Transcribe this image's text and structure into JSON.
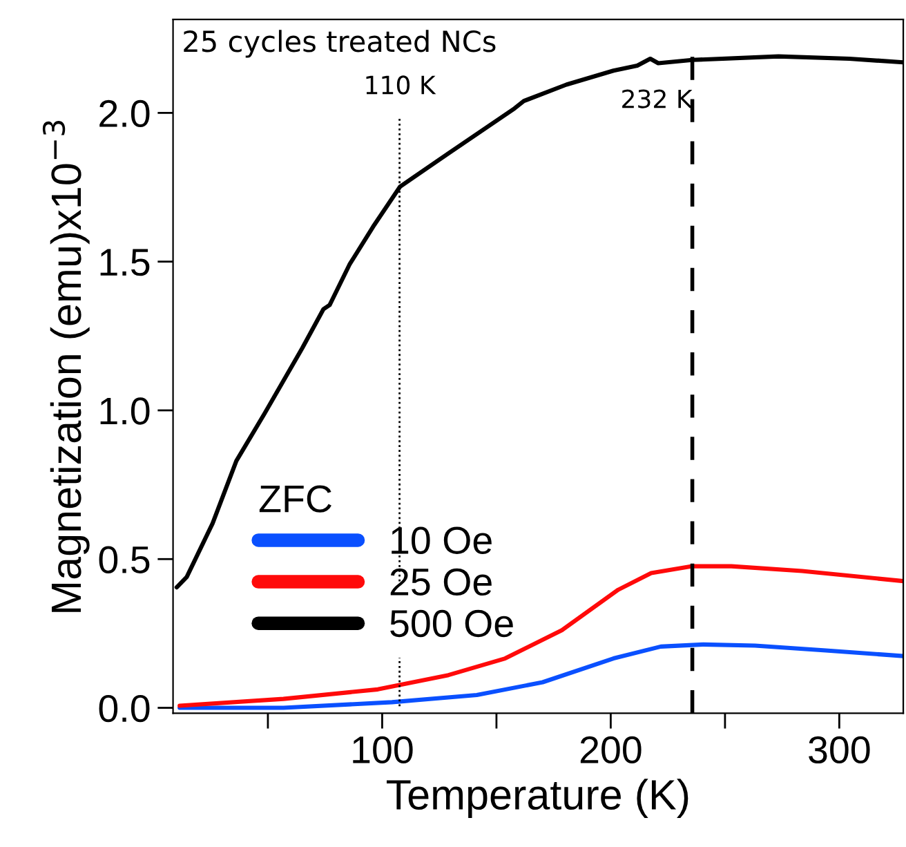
{
  "chart_data": {
    "type": "line",
    "title": "25 cycles treated NCs",
    "xlabel": "Temperature (K)",
    "ylabel": "Magnetization (emu)x10$^{−3}$",
    "legend_title": "ZFC",
    "xlim": [
      8.5,
      328
    ],
    "xticks": [
      {
        "value": 50,
        "label": null
      },
      100,
      {
        "value": 150,
        "label": null
      },
      200,
      {
        "value": 250,
        "label": null
      },
      300
    ],
    "ylim": [
      -0.018,
      2.314
    ],
    "yticks": [
      {
        "value": 0,
        "label": "0.0"
      },
      {
        "value": 0.5,
        "label": "0.5"
      },
      {
        "value": 1,
        "label": "1.0"
      },
      {
        "value": 1.5,
        "label": "1.5"
      },
      {
        "value": 2,
        "label": "2.0"
      }
    ],
    "grid": false,
    "legend": "bottom left",
    "marker": "none",
    "line_style": "solid",
    "series": [
      {
        "name": "10 Oe",
        "color": "#0a50ff",
        "x": [
          11.4,
          56.8,
          104.3,
          141.4,
          170.2,
          201.2,
          221.9,
          240.4,
          263.1,
          294.1,
          328
        ],
        "values": [
          0.0,
          0.0,
          0.019,
          0.043,
          0.086,
          0.166,
          0.206,
          0.213,
          0.209,
          0.193,
          0.174
        ]
      },
      {
        "name": "25 Oe",
        "color": "#ff0a0a",
        "x": [
          11.4,
          56.8,
          98.1,
          129,
          153.8,
          178.6,
          203.3,
          217.7,
          235.7,
          252.8,
          283.7,
          328
        ],
        "values": [
          0.007,
          0.03,
          0.062,
          0.11,
          0.166,
          0.261,
          0.397,
          0.453,
          0.476,
          0.476,
          0.46,
          0.426
        ]
      },
      {
        "name": "500 Oe",
        "color": "#000000",
        "x": [
          10.1,
          14.5,
          25.8,
          36.2,
          48.6,
          65.1,
          74.3,
          77,
          85.7,
          96,
          107.8,
          129,
          157.9,
          162,
          180.6,
          201.2,
          211.6,
          217.3,
          220.8,
          235.7,
          273.4,
          304.4,
          328
        ],
        "values": [
          0.405,
          0.44,
          0.62,
          0.83,
          0.99,
          1.21,
          1.34,
          1.354,
          1.49,
          1.617,
          1.752,
          1.864,
          2.015,
          2.04,
          2.095,
          2.142,
          2.159,
          2.182,
          2.167,
          2.178,
          2.19,
          2.182,
          2.17
        ]
      }
    ],
    "ref_lines": [
      {
        "axis": "x",
        "value": 107.6,
        "label": "110 K",
        "color": "#000000",
        "line_style": "dotted"
      },
      {
        "axis": "x",
        "value": 235.7,
        "label": "232 K",
        "color": "#000000",
        "line_style": "dashed"
      }
    ]
  }
}
